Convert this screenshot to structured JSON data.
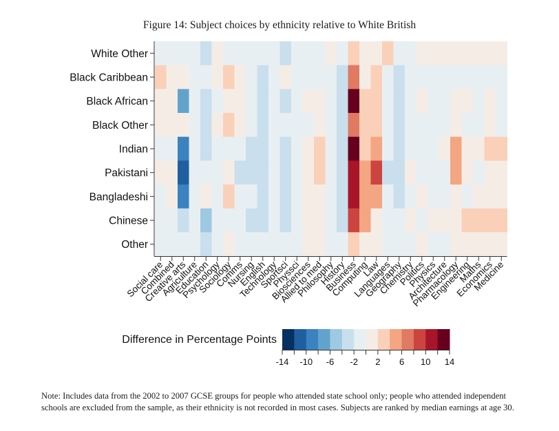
{
  "chart_data": {
    "type": "heatmap",
    "title": "Figure 14: Subject choices by ethnicity relative to White British",
    "xlabel": "",
    "ylabel": "",
    "rows": [
      "White Other",
      "Black Caribbean",
      "Black African",
      "Black Other",
      "Indian",
      "Pakistani",
      "Bangladeshi",
      "Chinese",
      "Other"
    ],
    "columns": [
      "Social care",
      "Combined",
      "Creative arts",
      "Agriculture",
      "Education",
      "Psychology",
      "Sociology",
      "Comms",
      "Nursing",
      "English",
      "Technology",
      "Sportsci",
      "Physsci",
      "Biosciences",
      "Allied to med",
      "Philosophy",
      "History",
      "Business",
      "Computing",
      "Law",
      "Languages",
      "Geography",
      "Chemistry",
      "Politics",
      "Physics",
      "Architecture",
      "Pharmacology",
      "Engineering",
      "Maths",
      "Economics",
      "Medicine"
    ],
    "values": [
      [
        -1,
        -1,
        -1,
        -1,
        -3,
        1,
        -1,
        -1,
        -1,
        -1,
        -1,
        -3,
        -1,
        -1,
        -1,
        1,
        -1,
        3,
        1,
        1,
        3,
        -1,
        -1,
        1,
        1,
        1,
        1,
        1,
        1,
        1,
        1
      ],
      [
        3,
        1,
        1,
        -1,
        -1,
        1,
        3,
        1,
        -1,
        -3,
        -1,
        1,
        -1,
        -1,
        -1,
        -1,
        -3,
        7,
        1,
        3,
        -1,
        -3,
        -1,
        -1,
        -1,
        -1,
        -1,
        -1,
        -1,
        -1,
        -1
      ],
      [
        1,
        1,
        -7,
        -1,
        -3,
        -1,
        1,
        1,
        -1,
        -3,
        -1,
        -3,
        -1,
        1,
        1,
        -1,
        -3,
        13,
        3,
        3,
        -1,
        -3,
        -1,
        1,
        -1,
        -1,
        1,
        1,
        -1,
        1,
        -1
      ],
      [
        1,
        1,
        1,
        -1,
        -3,
        1,
        3,
        1,
        -1,
        -3,
        -1,
        -1,
        -1,
        -1,
        1,
        -1,
        -3,
        7,
        3,
        3,
        -1,
        -3,
        -1,
        -1,
        -1,
        -1,
        1,
        -1,
        -1,
        1,
        -1
      ],
      [
        -1,
        -1,
        -9,
        -1,
        -3,
        -1,
        -1,
        -1,
        -3,
        -3,
        -1,
        -3,
        -1,
        1,
        3,
        -1,
        -3,
        13,
        3,
        5,
        -1,
        -3,
        -1,
        -1,
        -1,
        1,
        5,
        1,
        1,
        3,
        3
      ],
      [
        1,
        1,
        -11,
        -1,
        -1,
        -1,
        1,
        -3,
        -3,
        -3,
        -1,
        -3,
        -1,
        1,
        3,
        -1,
        -3,
        11,
        5,
        9,
        -3,
        -3,
        1,
        -1,
        -1,
        -1,
        5,
        1,
        -1,
        1,
        1
      ],
      [
        -1,
        1,
        -9,
        -1,
        1,
        -1,
        3,
        -1,
        -1,
        -3,
        -1,
        -3,
        -1,
        1,
        1,
        -1,
        -3,
        11,
        5,
        5,
        -1,
        -3,
        -1,
        1,
        -1,
        -1,
        1,
        -1,
        1,
        1,
        1
      ],
      [
        -1,
        -1,
        -3,
        -1,
        -5,
        -1,
        -1,
        -1,
        -3,
        -3,
        -1,
        -3,
        -1,
        1,
        1,
        -1,
        -3,
        9,
        5,
        1,
        -1,
        -1,
        1,
        -1,
        1,
        1,
        1,
        3,
        3,
        3,
        3
      ],
      [
        -1,
        -1,
        -1,
        -1,
        -3,
        -1,
        1,
        -1,
        -1,
        -1,
        -1,
        -1,
        -1,
        1,
        1,
        -1,
        -1,
        3,
        1,
        1,
        -1,
        -1,
        -1,
        1,
        -1,
        -1,
        1,
        1,
        1,
        1,
        1
      ]
    ],
    "value_note": "Cell values are bin midpoints read from a 2-point-wide color scale",
    "colorbar": {
      "title": "Difference in Percentage Points",
      "range": [
        -14,
        14
      ],
      "bin_width": 2,
      "tick_labels": [
        "-14",
        "-10",
        "-6",
        "-2",
        "2",
        "6",
        "10",
        "14"
      ],
      "tick_values": [
        -14,
        -10,
        -6,
        -2,
        2,
        6,
        10,
        14
      ],
      "colors": [
        "#053061",
        "#1f5fa0",
        "#3a82c0",
        "#62a3cc",
        "#9dc9e2",
        "#c9dfed",
        "#e8eff3",
        "#f6ece6",
        "#fbd0b9",
        "#f4a582",
        "#e07a62",
        "#cc4440",
        "#a81529",
        "#67001f"
      ]
    },
    "grid": false,
    "legend_position": "bottom"
  },
  "note": "Note: Includes data from the 2002 to 2007 GCSE groups for people who attended state school only; people who attended independent schools are excluded from the sample, as their ethnicity is not recorded in most cases. Subjects are ranked by median earnings at age 30."
}
